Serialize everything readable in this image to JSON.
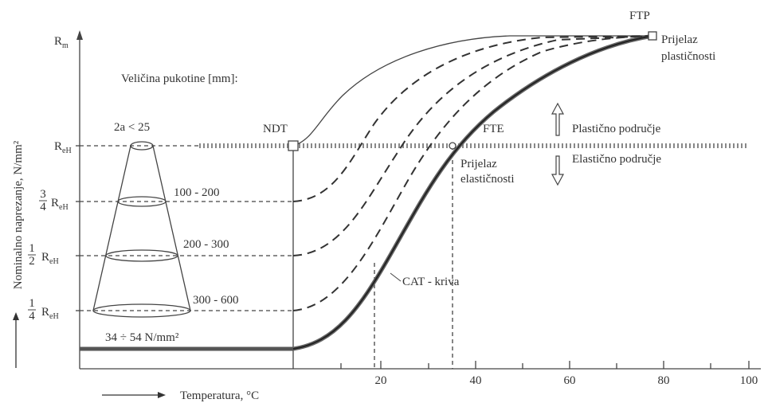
{
  "diagram": {
    "y_axis_title": "Nominalno naprezanje, N/mm²",
    "x_axis_title": "Temperatura, °C",
    "x_ticks": [
      "20",
      "40",
      "60",
      "80",
      "100"
    ],
    "y_labels": [
      {
        "symbol": "R",
        "sub": "m"
      },
      {
        "symbol": "R",
        "sub": "eH"
      },
      {
        "num": "3",
        "den": "4",
        "symbol": "R",
        "sub": "eH"
      },
      {
        "num": "1",
        "den": "2",
        "symbol": "R",
        "sub": "eH"
      },
      {
        "num": "1",
        "den": "4",
        "symbol": "R",
        "sub": "eH"
      }
    ],
    "crack_size_title": "Veličina pukotine [mm]:",
    "crack_sizes": [
      "2a < 25",
      "100 - 200",
      "200 - 300",
      "300 - 600"
    ],
    "base_stress": "34 ÷ 54 N/mm²",
    "points": {
      "ndt": "NDT",
      "fte": "FTE",
      "ftp": "FTP"
    },
    "annotations": {
      "fte_note": [
        "Prijelaz",
        "elastičnosti"
      ],
      "ftp_note": [
        "Prijelaz",
        "plastičnosti"
      ],
      "plastic": "Plastično područje",
      "elastic": "Elastično područje",
      "cat": "CAT - kriva"
    }
  }
}
